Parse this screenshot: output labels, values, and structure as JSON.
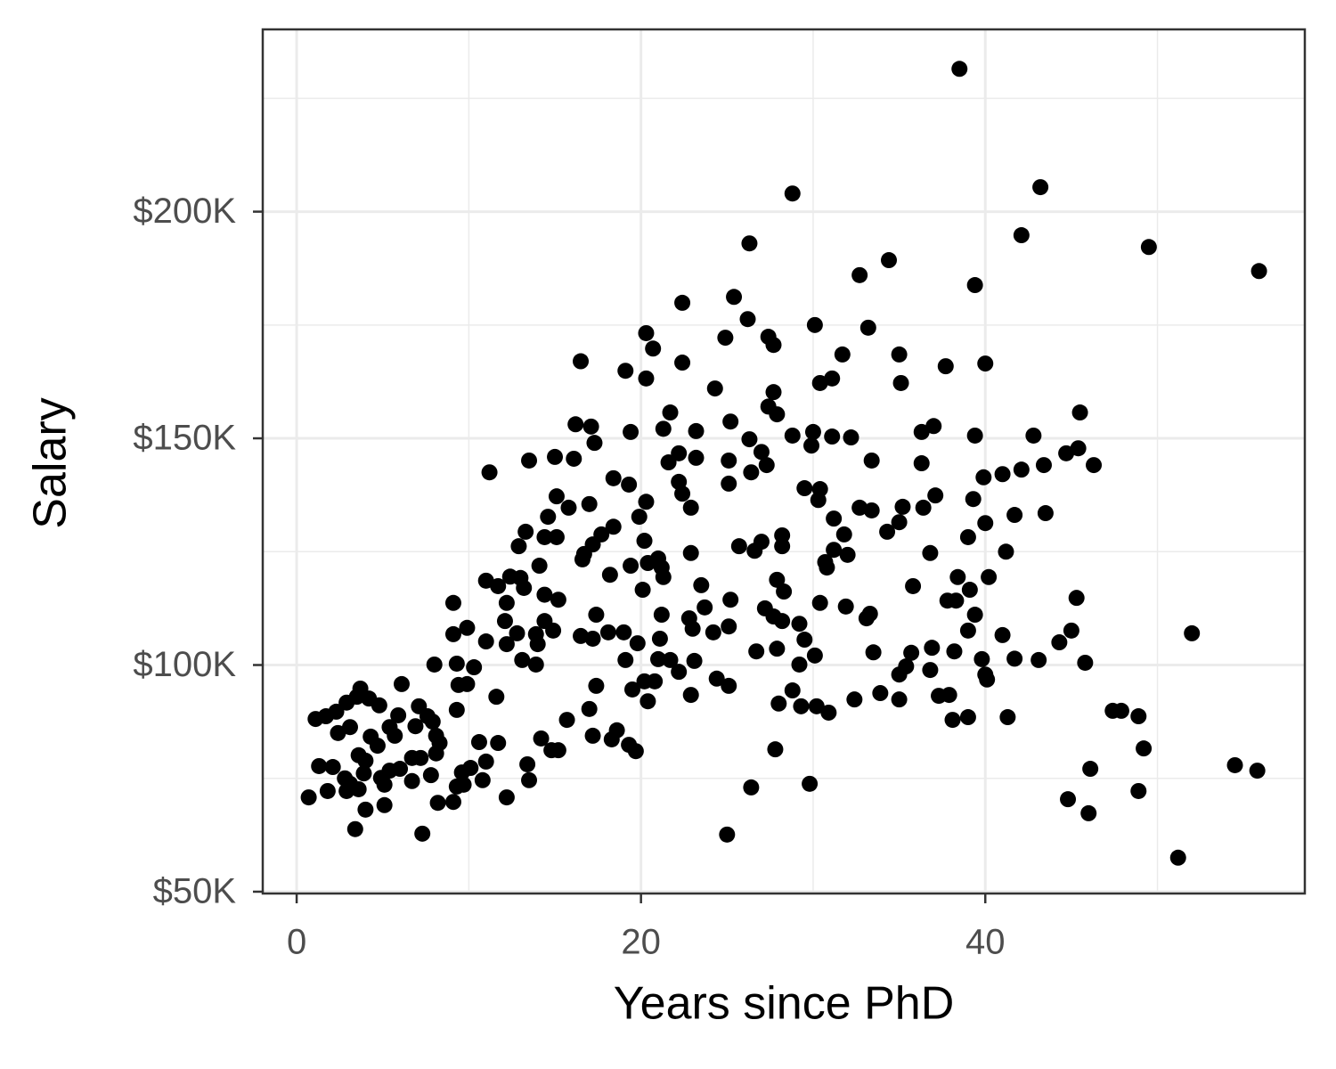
{
  "chart_data": {
    "type": "scatter",
    "x_label": "Years since PhD",
    "y_label": "Salary",
    "color": "#000000",
    "grid": true,
    "xlim": [
      -1.97,
      58.56
    ],
    "ylim": [
      49600,
      240200
    ],
    "xticks": [
      0,
      20,
      40
    ],
    "yticks": [
      {
        "value": 50000,
        "label": "$50K"
      },
      {
        "value": 100000,
        "label": "$100K"
      },
      {
        "value": 150000,
        "label": "$150K"
      },
      {
        "value": 200000,
        "label": "$200K"
      }
    ],
    "x_minor_grid": [
      10,
      30,
      50
    ],
    "y_minor_grid": [
      75000,
      125000,
      175000,
      225000
    ],
    "x": [
      38.5,
      28.8,
      43.2,
      26.3,
      42.1,
      49.5,
      55.9,
      32.7,
      34.4,
      39.4,
      25.4,
      22.4,
      26.2,
      30.1,
      33.2,
      20.3,
      24.9,
      27.4,
      27.7,
      20.7,
      31.7,
      35,
      16.5,
      22.4,
      37.7,
      40,
      19.1,
      20.3,
      30.4,
      31.1,
      35.1,
      24.3,
      27.7,
      27.4,
      27.9,
      21.7,
      45.5,
      16.2,
      17.1,
      17.3,
      25.2,
      37,
      21.3,
      23.2,
      19.4,
      30,
      31.1,
      32.2,
      28.8,
      36.3,
      39.4,
      42.8,
      26.3,
      27,
      29.9,
      45.4,
      44.7,
      46.3,
      43.4,
      42.1,
      22.2,
      23.2,
      25.1,
      21.6,
      27.3,
      33.4,
      36.3,
      13.5,
      15,
      16.1,
      11.2,
      39.9,
      41,
      18.4,
      19.3,
      22.2,
      25.1,
      26.4,
      22.4,
      30.4,
      29.5,
      37.1,
      39.3,
      15.1,
      15.8,
      17,
      20.3,
      30.3,
      32.7,
      33.4,
      35.2,
      36.4,
      41.7,
      43.5,
      22.9,
      14.6,
      19.9,
      31.2,
      35,
      40,
      34.3,
      13.3,
      14.4,
      15.1,
      18.4,
      17.7,
      20.2,
      31.8,
      39,
      28.2,
      27,
      25.7,
      12.9,
      17.2,
      31.2,
      41.2,
      16.7,
      16.6,
      26.6,
      28.2,
      21,
      22.9,
      32,
      36.8,
      30.7,
      14.1,
      20.4,
      21.2,
      19.4,
      30.8,
      18.2,
      12.4,
      11,
      13,
      21.3,
      27.9,
      38.4,
      40.2,
      11.7,
      13.2,
      23.5,
      28.3,
      35.8,
      39.1,
      14.4,
      20.1,
      15.2,
      25.2,
      37.8,
      38.3,
      45.3,
      9.1,
      12.2,
      23.7,
      30.4,
      31.9,
      27.2,
      27.7,
      52,
      41,
      45,
      17.4,
      21.2,
      22.8,
      28.2,
      29.2,
      33.1,
      33.3,
      39.4,
      12.1,
      14.4,
      24.2,
      39,
      44.3,
      9.9,
      9.1,
      12.8,
      13.9,
      14.9,
      16.5,
      17.2,
      18.1,
      19,
      19.8,
      21.1,
      23,
      25.1,
      29.5,
      11,
      12.2,
      14,
      26.7,
      27.9,
      33.5,
      35.7,
      36.9,
      38.2,
      41.7,
      43.1,
      45.8,
      39.8,
      13.1,
      13.9,
      8,
      9.3,
      10.3,
      19.1,
      21,
      21.7,
      23.1,
      29.2,
      30.1,
      35.4,
      36.8,
      35,
      40,
      22.2,
      20.2,
      9.4,
      9.9,
      17.4,
      20.8,
      24.4,
      25.1,
      40.1,
      19.5,
      6.1,
      3.7,
      28.8,
      33.9,
      37.3,
      37.9,
      3.5,
      4.2,
      11.6,
      20.4,
      22.9,
      35,
      32.4,
      2.9,
      4.8,
      7.1,
      28,
      29.3,
      30.2,
      30.9,
      17,
      9.3,
      2.3,
      1.7,
      1.1,
      47.4,
      47.9,
      48.9,
      39,
      38.1,
      41.3,
      15.7,
      5.9,
      7.6,
      7.9,
      3.1,
      5.4,
      6.9,
      2.4,
      4.3,
      8.1,
      5.7,
      14.2,
      17.2,
      18.6,
      18.3,
      8.3,
      10.6,
      11.7,
      4.7,
      19.3,
      19.7,
      27.8,
      49.2,
      14.8,
      15.2,
      3.6,
      8.1,
      6.7,
      7.2,
      4,
      11,
      1.3,
      2.1,
      10.1,
      13.4,
      54.5,
      55.8,
      46.1,
      5.4,
      6,
      3.9,
      9.6,
      2.8,
      4.9,
      6.7,
      10.8,
      13.5,
      7.8,
      3.1,
      5.1,
      9.7,
      29.8,
      26.4,
      9.3,
      3.6,
      1.8,
      2.9,
      48.9,
      0.7,
      12.2,
      44.8,
      8.2,
      9.1,
      5.1,
      4,
      46,
      3.4,
      7.3,
      25,
      51.2
    ],
    "values": [
      231500,
      204000,
      205400,
      193000,
      194800,
      192200,
      186900,
      186000,
      189300,
      183800,
      181200,
      179900,
      176300,
      175000,
      174400,
      173200,
      172200,
      172400,
      170600,
      169800,
      168500,
      168500,
      167000,
      166700,
      165900,
      166500,
      164900,
      163200,
      162200,
      163200,
      162200,
      161000,
      160200,
      157000,
      155300,
      155700,
      155700,
      153100,
      152600,
      149000,
      153700,
      152700,
      152100,
      151600,
      151400,
      151400,
      150400,
      150200,
      150600,
      151400,
      150600,
      150600,
      149800,
      147000,
      148400,
      147800,
      146700,
      144100,
      144100,
      143100,
      146700,
      145700,
      145100,
      144700,
      144100,
      145100,
      144500,
      145100,
      145900,
      145500,
      142500,
      141400,
      142100,
      141200,
      139800,
      140400,
      140000,
      142500,
      137800,
      138800,
      139000,
      137400,
      136600,
      137200,
      134700,
      135500,
      136000,
      136400,
      134700,
      134100,
      134900,
      134700,
      133100,
      133500,
      134700,
      132700,
      132700,
      132300,
      131500,
      131300,
      129400,
      129400,
      128200,
      128200,
      130500,
      128800,
      127400,
      128800,
      128200,
      128600,
      127200,
      126200,
      126200,
      126600,
      125400,
      125000,
      124500,
      123300,
      125200,
      126200,
      123500,
      124700,
      124300,
      124700,
      122700,
      121900,
      122500,
      121500,
      121900,
      121500,
      119900,
      119500,
      118600,
      119200,
      119400,
      118800,
      119400,
      119400,
      117400,
      117000,
      117600,
      116200,
      117400,
      116600,
      115500,
      116600,
      114400,
      114400,
      114200,
      114200,
      114800,
      113700,
      113700,
      112700,
      113700,
      112900,
      112500,
      110700,
      107000,
      106600,
      107600,
      111100,
      111100,
      110300,
      109700,
      109100,
      110300,
      111300,
      111100,
      109700,
      109700,
      107200,
      107600,
      105000,
      108200,
      106800,
      107000,
      106800,
      107600,
      106400,
      105800,
      107200,
      107200,
      104800,
      105800,
      108000,
      108500,
      105600,
      105200,
      104600,
      104600,
      103000,
      103600,
      102800,
      102700,
      103800,
      103000,
      101400,
      101100,
      100500,
      101300,
      101100,
      100100,
      100100,
      100300,
      99500,
      101100,
      101300,
      101100,
      100900,
      100100,
      102100,
      99700,
      98900,
      97900,
      97900,
      98500,
      96400,
      95600,
      95800,
      95400,
      96400,
      97000,
      95400,
      96800,
      94600,
      95800,
      94800,
      94400,
      93800,
      93200,
      93400,
      93000,
      92600,
      93000,
      92000,
      93400,
      92400,
      92400,
      91700,
      91100,
      90900,
      91500,
      90900,
      90900,
      89500,
      90300,
      90100,
      89700,
      88700,
      88100,
      89900,
      89900,
      88700,
      88500,
      87900,
      88500,
      87900,
      88900,
      88700,
      87500,
      86300,
      86300,
      86500,
      85000,
      84200,
      84400,
      84400,
      83800,
      84400,
      85600,
      83600,
      82800,
      83000,
      82800,
      82200,
      82400,
      81000,
      81400,
      81600,
      81200,
      81200,
      80100,
      80500,
      79500,
      79500,
      78900,
      78700,
      77700,
      77500,
      77300,
      78100,
      77900,
      76700,
      77100,
      76700,
      77100,
      76100,
      76300,
      75000,
      75100,
      74400,
      74600,
      74600,
      75700,
      73800,
      73600,
      73600,
      73800,
      73000,
      73200,
      72600,
      72200,
      72200,
      72200,
      70800,
      70800,
      70400,
      69600,
      69800,
      69100,
      68100,
      67300,
      63800,
      62800,
      62600,
      57500
    ]
  }
}
